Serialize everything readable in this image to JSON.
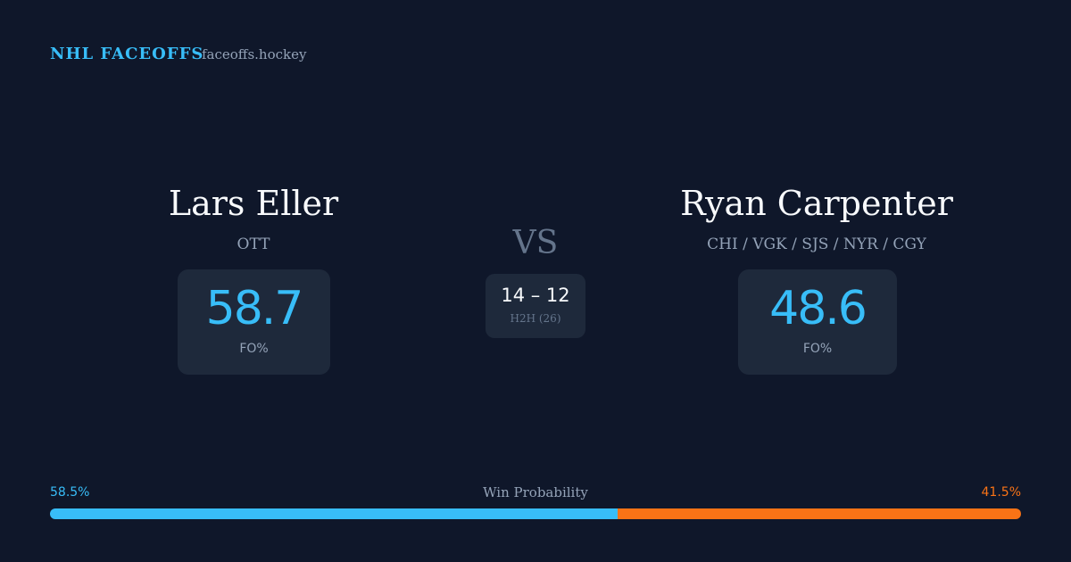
{
  "header": {
    "brand": "NHL FACEOFFS",
    "site": "faceoffs.hockey"
  },
  "players": [
    {
      "name": "Lars Eller",
      "team": "OTT",
      "fo_pct": "58.7",
      "fo_label": "FO%"
    },
    {
      "name": "Ryan Carpenter",
      "team": "CHI / VGK / SJS / NYR / CGY",
      "fo_pct": "48.6",
      "fo_label": "FO%"
    }
  ],
  "versus": "VS",
  "h2h": {
    "record": "14 – 12",
    "label": "H2H (26)"
  },
  "win_probability": {
    "title": "Win Probability",
    "segments": [
      {
        "value": 58.5,
        "label": "58.5%",
        "color": "#38bdf8"
      },
      {
        "value": 41.5,
        "label": "41.5%",
        "color": "#f97316"
      }
    ]
  }
}
